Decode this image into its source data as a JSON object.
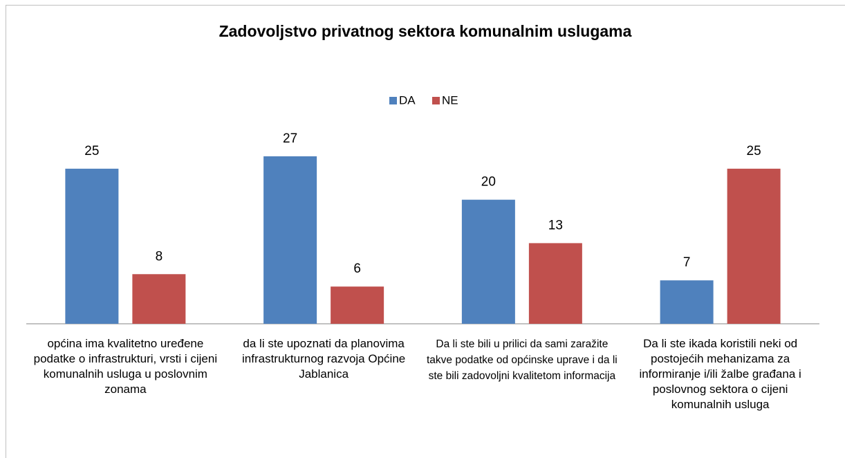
{
  "chart_data": {
    "type": "bar",
    "title": "Zadovoljstvo privatnog sektora komunalnim uslugama",
    "categories": [
      "općina ima kvalitetno uređene podatke o infrastrukturi, vrsti i cijeni komunalnih usluga u poslovnim zonama",
      "da li ste upoznati da planovima infrastrukturnog razvoja Općine Jablanica",
      "Da li ste bili u prilici da sami zaražite takve podatke od općinske uprave i da li ste bili zadovoljni kvalitetom informacija",
      "Da li ste ikada koristili neki od postojećih mehanizama za informiranje i/ili žalbe građana i poslovnog sektora o cijeni komunalnih usluga"
    ],
    "series": [
      {
        "name": "DA",
        "color": "#4f81bd",
        "values": [
          25,
          27,
          20,
          7
        ]
      },
      {
        "name": "NE",
        "color": "#c0504d",
        "values": [
          8,
          6,
          13,
          25
        ]
      }
    ],
    "ylim": [
      0,
      30
    ],
    "legend": "top"
  }
}
